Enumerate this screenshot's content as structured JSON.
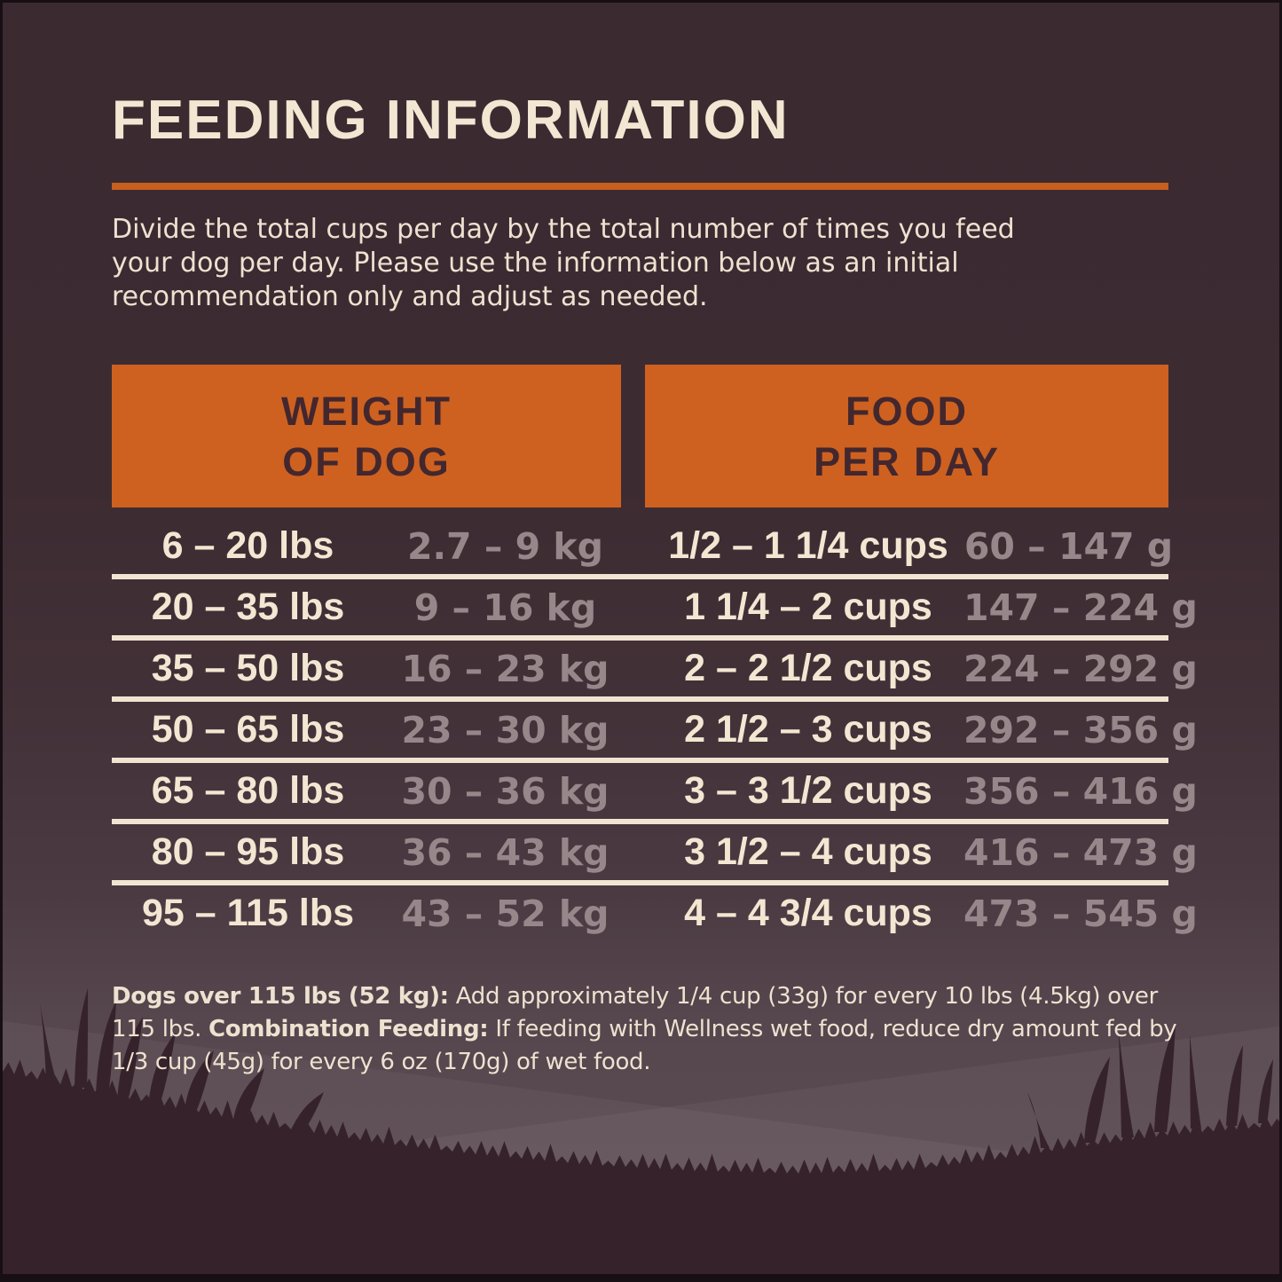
{
  "header": {
    "title": "FEEDING INFORMATION"
  },
  "intro": {
    "lines": [
      "Divide the total cups per day by the total number of times you feed",
      "your dog per day. Please use the information below as an initial",
      "recommendation only and adjust as needed."
    ]
  },
  "table": {
    "headers": [
      {
        "top": "WEIGHT",
        "bottom": "OF DOG"
      },
      {
        "top": "FOOD",
        "bottom": "PER DAY"
      }
    ],
    "rows": [
      {
        "lbs": "6 – 20 lbs",
        "kg": "2.7 – 9 kg",
        "cups": "1/2 – 1 1/4 cups",
        "grams": "60 – 147 g"
      },
      {
        "lbs": "20 – 35 lbs",
        "kg": "9 – 16 kg",
        "cups": "1 1/4 – 2 cups",
        "grams": "147 – 224 g"
      },
      {
        "lbs": "35 – 50 lbs",
        "kg": "16 – 23 kg",
        "cups": "2 – 2 1/2 cups",
        "grams": "224 – 292 g"
      },
      {
        "lbs": "50 – 65 lbs",
        "kg": "23 – 30 kg",
        "cups": "2 1/2 – 3 cups",
        "grams": "292 – 356 g"
      },
      {
        "lbs": "65 – 80 lbs",
        "kg": "30 – 36 kg",
        "cups": "3 – 3 1/2 cups",
        "grams": "356 – 416 g"
      },
      {
        "lbs": "80 – 95 lbs",
        "kg": "36 – 43 kg",
        "cups": "3 1/2 – 4 cups",
        "grams": "416 – 473 g"
      },
      {
        "lbs": "95 – 115 lbs",
        "kg": "43 – 52 kg",
        "cups": "4 – 4 3/4 cups",
        "grams": "473 – 545 g"
      }
    ]
  },
  "footer": {
    "bold1": "Dogs over 115 lbs (52 kg):",
    "text1a": " Add approximately 1/4 cup (33g) for every 10 lbs (4.5kg) over",
    "text1b": "115 lbs. ",
    "bold2": "Combination Feeding:",
    "text2a": " If feeding with Wellness wet food, reduce dry amount fed by",
    "text2b": "1/3 cup (45g) for every 6 oz (170g) of wet food."
  },
  "colors": {
    "accent_orange": "#CE6120",
    "cream_text": "#F2E7D2",
    "muted_text": "#97878B",
    "panel_background": "#3D2B32",
    "header_box_text": "#43272E",
    "grass_silhouette": "#36222B"
  }
}
